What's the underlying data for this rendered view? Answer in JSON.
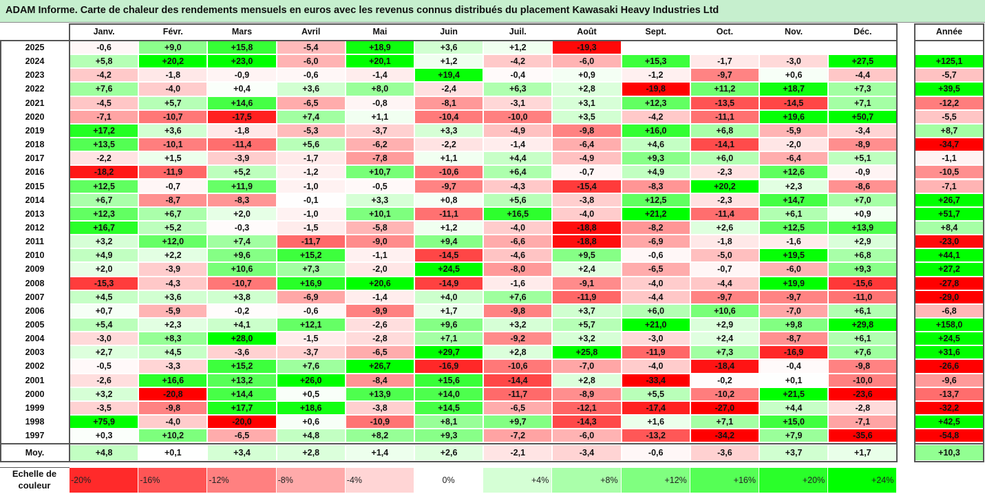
{
  "title": "ADAM Informe. Carte de chaleur des rendements mensuels en euros avec les revenus connus distribués du placement Kawasaki Heavy Industries Ltd",
  "colors": {
    "header_bg": "#c6efce",
    "negative": "#ff0000",
    "positive": "#00ff00",
    "neutral": "#ffffff"
  },
  "chart_data": {
    "type": "heatmap",
    "months": [
      "Janv.",
      "Févr.",
      "Mars",
      "Avril",
      "Mai",
      "Juin",
      "Juil.",
      "Août",
      "Sept.",
      "Oct.",
      "Nov.",
      "Déc."
    ],
    "year_header": "Année",
    "rows": [
      {
        "year": "2025",
        "values": [
          "-0,6",
          "+9,0",
          "+15,8",
          "-5,4",
          "+18,9",
          "+3,6",
          "+1,2",
          "-19,3",
          "",
          "",
          "",
          ""
        ],
        "annual": ""
      },
      {
        "year": "2024",
        "values": [
          "+5,8",
          "+20,2",
          "+23,0",
          "-6,0",
          "+20,1",
          "+1,2",
          "-4,2",
          "-6,0",
          "+15,3",
          "-1,7",
          "-3,0",
          "+27,5"
        ],
        "annual": "+125,1"
      },
      {
        "year": "2023",
        "values": [
          "-4,2",
          "-1,8",
          "-0,9",
          "-0,6",
          "-1,4",
          "+19,4",
          "-0,4",
          "+0,9",
          "-1,2",
          "-9,7",
          "+0,6",
          "-4,4"
        ],
        "annual": "-5,7"
      },
      {
        "year": "2022",
        "values": [
          "+7,6",
          "-4,0",
          "+0,4",
          "+3,6",
          "+8,0",
          "-2,4",
          "+6,3",
          "+2,8",
          "-19,8",
          "+11,2",
          "+18,7",
          "+7,3"
        ],
        "annual": "+39,5"
      },
      {
        "year": "2021",
        "values": [
          "-4,5",
          "+5,7",
          "+14,6",
          "-6,5",
          "-0,8",
          "-8,1",
          "-3,1",
          "+3,1",
          "+12,3",
          "-13,5",
          "-14,5",
          "+7,1"
        ],
        "annual": "-12,2"
      },
      {
        "year": "2020",
        "values": [
          "-7,1",
          "-10,7",
          "-17,5",
          "+7,4",
          "+1,1",
          "-10,4",
          "-10,0",
          "+3,5",
          "-4,2",
          "-11,1",
          "+19,6",
          "+50,7"
        ],
        "annual": "-5,5"
      },
      {
        "year": "2019",
        "values": [
          "+17,2",
          "+3,6",
          "-1,8",
          "-5,3",
          "-3,7",
          "+3,3",
          "-4,9",
          "-9,8",
          "+16,0",
          "+6,8",
          "-5,9",
          "-3,4"
        ],
        "annual": "+8,7"
      },
      {
        "year": "2018",
        "values": [
          "+13,5",
          "-10,1",
          "-11,4",
          "+5,6",
          "-6,2",
          "-2,2",
          "-1,4",
          "-6,4",
          "+4,6",
          "-14,1",
          "-2,0",
          "-8,9"
        ],
        "annual": "-34,7"
      },
      {
        "year": "2017",
        "values": [
          "-2,2",
          "+1,5",
          "-3,9",
          "-1,7",
          "-7,8",
          "+1,1",
          "+4,4",
          "-4,9",
          "+9,3",
          "+6,0",
          "-6,4",
          "+5,1"
        ],
        "annual": "-1,1"
      },
      {
        "year": "2016",
        "values": [
          "-18,2",
          "-11,9",
          "+5,2",
          "-1,2",
          "+10,7",
          "-10,6",
          "+6,4",
          "-0,7",
          "+4,9",
          "-2,3",
          "+12,6",
          "-0,9"
        ],
        "annual": "-10,5"
      },
      {
        "year": "2015",
        "values": [
          "+12,5",
          "-0,7",
          "+11,9",
          "-1,0",
          "-0,5",
          "-9,7",
          "-4,3",
          "-15,4",
          "-8,3",
          "+20,2",
          "+2,3",
          "-8,6"
        ],
        "annual": "-7,1"
      },
      {
        "year": "2014",
        "values": [
          "+6,7",
          "-8,7",
          "-8,3",
          "-0,1",
          "+3,3",
          "+0,8",
          "+5,6",
          "-3,8",
          "+12,5",
          "-2,3",
          "+14,7",
          "+7,0"
        ],
        "annual": "+26,7"
      },
      {
        "year": "2013",
        "values": [
          "+12,3",
          "+6,7",
          "+2,0",
          "-1,0",
          "+10,1",
          "-11,1",
          "+16,5",
          "-4,0",
          "+21,2",
          "-11,4",
          "+6,1",
          "+0,9"
        ],
        "annual": "+51,7"
      },
      {
        "year": "2012",
        "values": [
          "+16,7",
          "+5,2",
          "-0,3",
          "-1,5",
          "-5,8",
          "+1,2",
          "-4,0",
          "-18,8",
          "-8,2",
          "+2,6",
          "+12,5",
          "+13,9"
        ],
        "annual": "+8,4"
      },
      {
        "year": "2011",
        "values": [
          "+3,2",
          "+12,0",
          "+7,4",
          "-11,7",
          "-9,0",
          "+9,4",
          "-6,6",
          "-18,8",
          "-6,9",
          "-1,8",
          "-1,6",
          "+2,9"
        ],
        "annual": "-23,0"
      },
      {
        "year": "2010",
        "values": [
          "+4,9",
          "+2,2",
          "+9,6",
          "+15,2",
          "-1,1",
          "-14,5",
          "-4,6",
          "+9,5",
          "-0,6",
          "-5,0",
          "+19,5",
          "+6,8"
        ],
        "annual": "+44,1"
      },
      {
        "year": "2009",
        "values": [
          "+2,0",
          "-3,9",
          "+10,6",
          "+7,3",
          "-2,0",
          "+24,5",
          "-8,0",
          "+2,4",
          "-6,5",
          "-0,7",
          "-6,0",
          "+9,3"
        ],
        "annual": "+27,2"
      },
      {
        "year": "2008",
        "values": [
          "-15,3",
          "-4,3",
          "-10,7",
          "+16,9",
          "+20,6",
          "-14,9",
          "-1,6",
          "-9,1",
          "-4,0",
          "-4,4",
          "+19,9",
          "-15,6"
        ],
        "annual": "-27,8"
      },
      {
        "year": "2007",
        "values": [
          "+4,5",
          "+3,6",
          "+3,8",
          "-6,9",
          "-1,4",
          "+4,0",
          "+7,6",
          "-11,9",
          "-4,4",
          "-9,7",
          "-9,7",
          "-11,0"
        ],
        "annual": "-29,0"
      },
      {
        "year": "2006",
        "values": [
          "+0,7",
          "-5,9",
          "-0,2",
          "-0,6",
          "-9,9",
          "+1,7",
          "-9,8",
          "+3,7",
          "+6,0",
          "+10,6",
          "-7,0",
          "+6,1"
        ],
        "annual": "-6,8"
      },
      {
        "year": "2005",
        "values": [
          "+5,4",
          "+2,3",
          "+4,1",
          "+12,1",
          "-2,6",
          "+9,6",
          "+3,2",
          "+5,7",
          "+21,0",
          "+2,9",
          "+9,8",
          "+29,8"
        ],
        "annual": "+158,0"
      },
      {
        "year": "2004",
        "values": [
          "-3,0",
          "+8,3",
          "+28,0",
          "-1,5",
          "-2,8",
          "+7,1",
          "-9,2",
          "+3,2",
          "-3,0",
          "+2,4",
          "-8,7",
          "+6,1"
        ],
        "annual": "+24,5"
      },
      {
        "year": "2003",
        "values": [
          "+2,7",
          "+4,5",
          "-3,6",
          "-3,7",
          "-6,5",
          "+29,7",
          "+2,8",
          "+25,8",
          "-11,9",
          "+7,3",
          "-16,9",
          "+7,6"
        ],
        "annual": "+31,6"
      },
      {
        "year": "2002",
        "values": [
          "-0,5",
          "-3,3",
          "+15,2",
          "+7,6",
          "+26,7",
          "-16,9",
          "-10,6",
          "-7,0",
          "-4,0",
          "-18,4",
          "-0,4",
          "-9,8"
        ],
        "annual": "-26,6"
      },
      {
        "year": "2001",
        "values": [
          "-2,6",
          "+16,6",
          "+13,2",
          "+26,0",
          "-8,4",
          "+15,6",
          "-14,4",
          "+2,8",
          "-33,4",
          "-0,2",
          "+0,1",
          "-10,0"
        ],
        "annual": "-9,6"
      },
      {
        "year": "2000",
        "values": [
          "+3,2",
          "-20,8",
          "+14,4",
          "+0,5",
          "+13,9",
          "+14,0",
          "-11,7",
          "-8,9",
          "+5,5",
          "-10,2",
          "+21,5",
          "-23,6"
        ],
        "annual": "-13,7"
      },
      {
        "year": "1999",
        "values": [
          "-3,5",
          "-9,8",
          "+17,7",
          "+18,6",
          "-3,8",
          "+14,5",
          "-6,5",
          "-12,1",
          "-17,4",
          "-27,0",
          "+4,4",
          "-2,8"
        ],
        "annual": "-32,2"
      },
      {
        "year": "1998",
        "values": [
          "+75,9",
          "-4,0",
          "-20,0",
          "+0,6",
          "-10,9",
          "+8,1",
          "+9,7",
          "-14,3",
          "+1,6",
          "+7,1",
          "+15,0",
          "-7,1"
        ],
        "annual": "+42,5"
      },
      {
        "year": "1997",
        "values": [
          "+0,3",
          "+10,2",
          "-6,5",
          "+4,8",
          "+8,2",
          "+9,3",
          "-7,2",
          "-6,0",
          "-13,2",
          "-34,2",
          "+7,9",
          "-35,6"
        ],
        "annual": "-54,8"
      }
    ],
    "average": {
      "label": "Moy.",
      "values": [
        "+4,8",
        "+0,1",
        "+3,4",
        "+2,8",
        "+1,4",
        "+2,6",
        "-2,1",
        "-3,4",
        "-0,6",
        "-3,6",
        "+3,7",
        "+1,7"
      ],
      "annual": "+10,3"
    },
    "legend": {
      "label": "Echelle de couleur",
      "steps": [
        {
          "text": "-20%",
          "value": -20
        },
        {
          "text": "-16%",
          "value": -16
        },
        {
          "text": "-12%",
          "value": -12
        },
        {
          "text": "-8%",
          "value": -8
        },
        {
          "text": "-4%",
          "value": -4
        },
        {
          "text": "0%",
          "value": 0
        },
        {
          "text": "+4%",
          "value": 4
        },
        {
          "text": "+8%",
          "value": 8
        },
        {
          "text": "+12%",
          "value": 12
        },
        {
          "text": "+16%",
          "value": 16
        },
        {
          "text": "+20%",
          "value": 20
        },
        {
          "text": "+24%",
          "value": 24
        }
      ]
    }
  }
}
